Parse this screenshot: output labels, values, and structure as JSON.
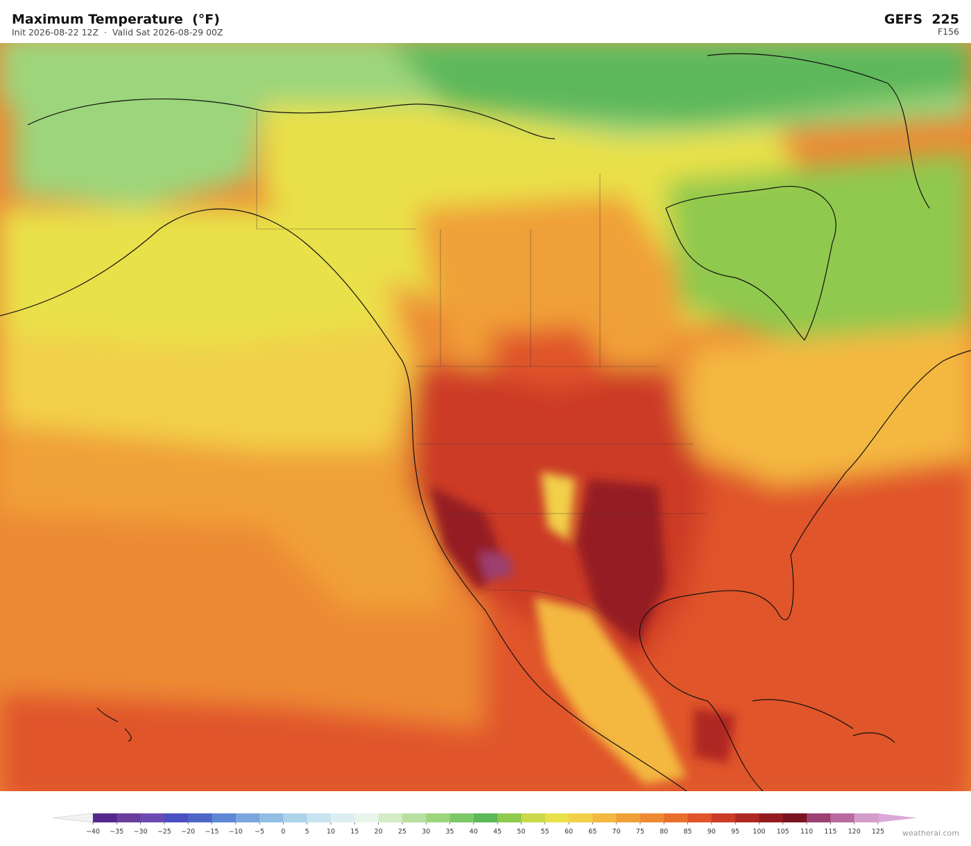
{
  "header": {
    "title": "Maximum Temperature  (°F)",
    "subtitle": "Init 2026-08-22 12Z  ·  Valid Sat 2026-08-29 00Z",
    "model": "GEFS  225",
    "forecast_hour": "F156"
  },
  "colorbar": {
    "ticks": [
      {
        "value": -40,
        "label": "−40"
      },
      {
        "value": -35,
        "label": "−35"
      },
      {
        "value": -30,
        "label": "−30"
      },
      {
        "value": -25,
        "label": "−25"
      },
      {
        "value": -20,
        "label": "−20"
      },
      {
        "value": -15,
        "label": "−15"
      },
      {
        "value": -10,
        "label": "−10"
      },
      {
        "value": -5,
        "label": "−5"
      },
      0,
      5,
      10,
      15,
      20,
      25,
      30,
      35,
      40,
      45,
      50,
      55,
      60,
      65,
      70,
      75,
      80,
      85,
      90,
      95,
      100,
      105,
      110,
      115,
      120,
      125
    ],
    "colors": [
      "#54278f",
      "#6a3d9a",
      "#6b4bb2",
      "#4b50c2",
      "#4f66c9",
      "#5e88d4",
      "#7ba6dc",
      "#93bee3",
      "#add3ea",
      "#c7e4ef",
      "#ddeef2",
      "#e9f5ea",
      "#d3ebc6",
      "#b8e0a0",
      "#9dd57c",
      "#7cc868",
      "#5db85a",
      "#8fc94e",
      "#c9d94a",
      "#e9e14a",
      "#f2d048",
      "#f4b840",
      "#f0a038",
      "#ec8a34",
      "#e8702e",
      "#e0542a",
      "#cc3a28",
      "#b02824",
      "#941c20",
      "#7a1420",
      "#9c4070",
      "#b86aa0",
      "#d49cc8"
    ],
    "under_color": "#f2f2f2",
    "over_color": "#dca8d8"
  },
  "footer": {
    "credit": "weatherai.com"
  }
}
